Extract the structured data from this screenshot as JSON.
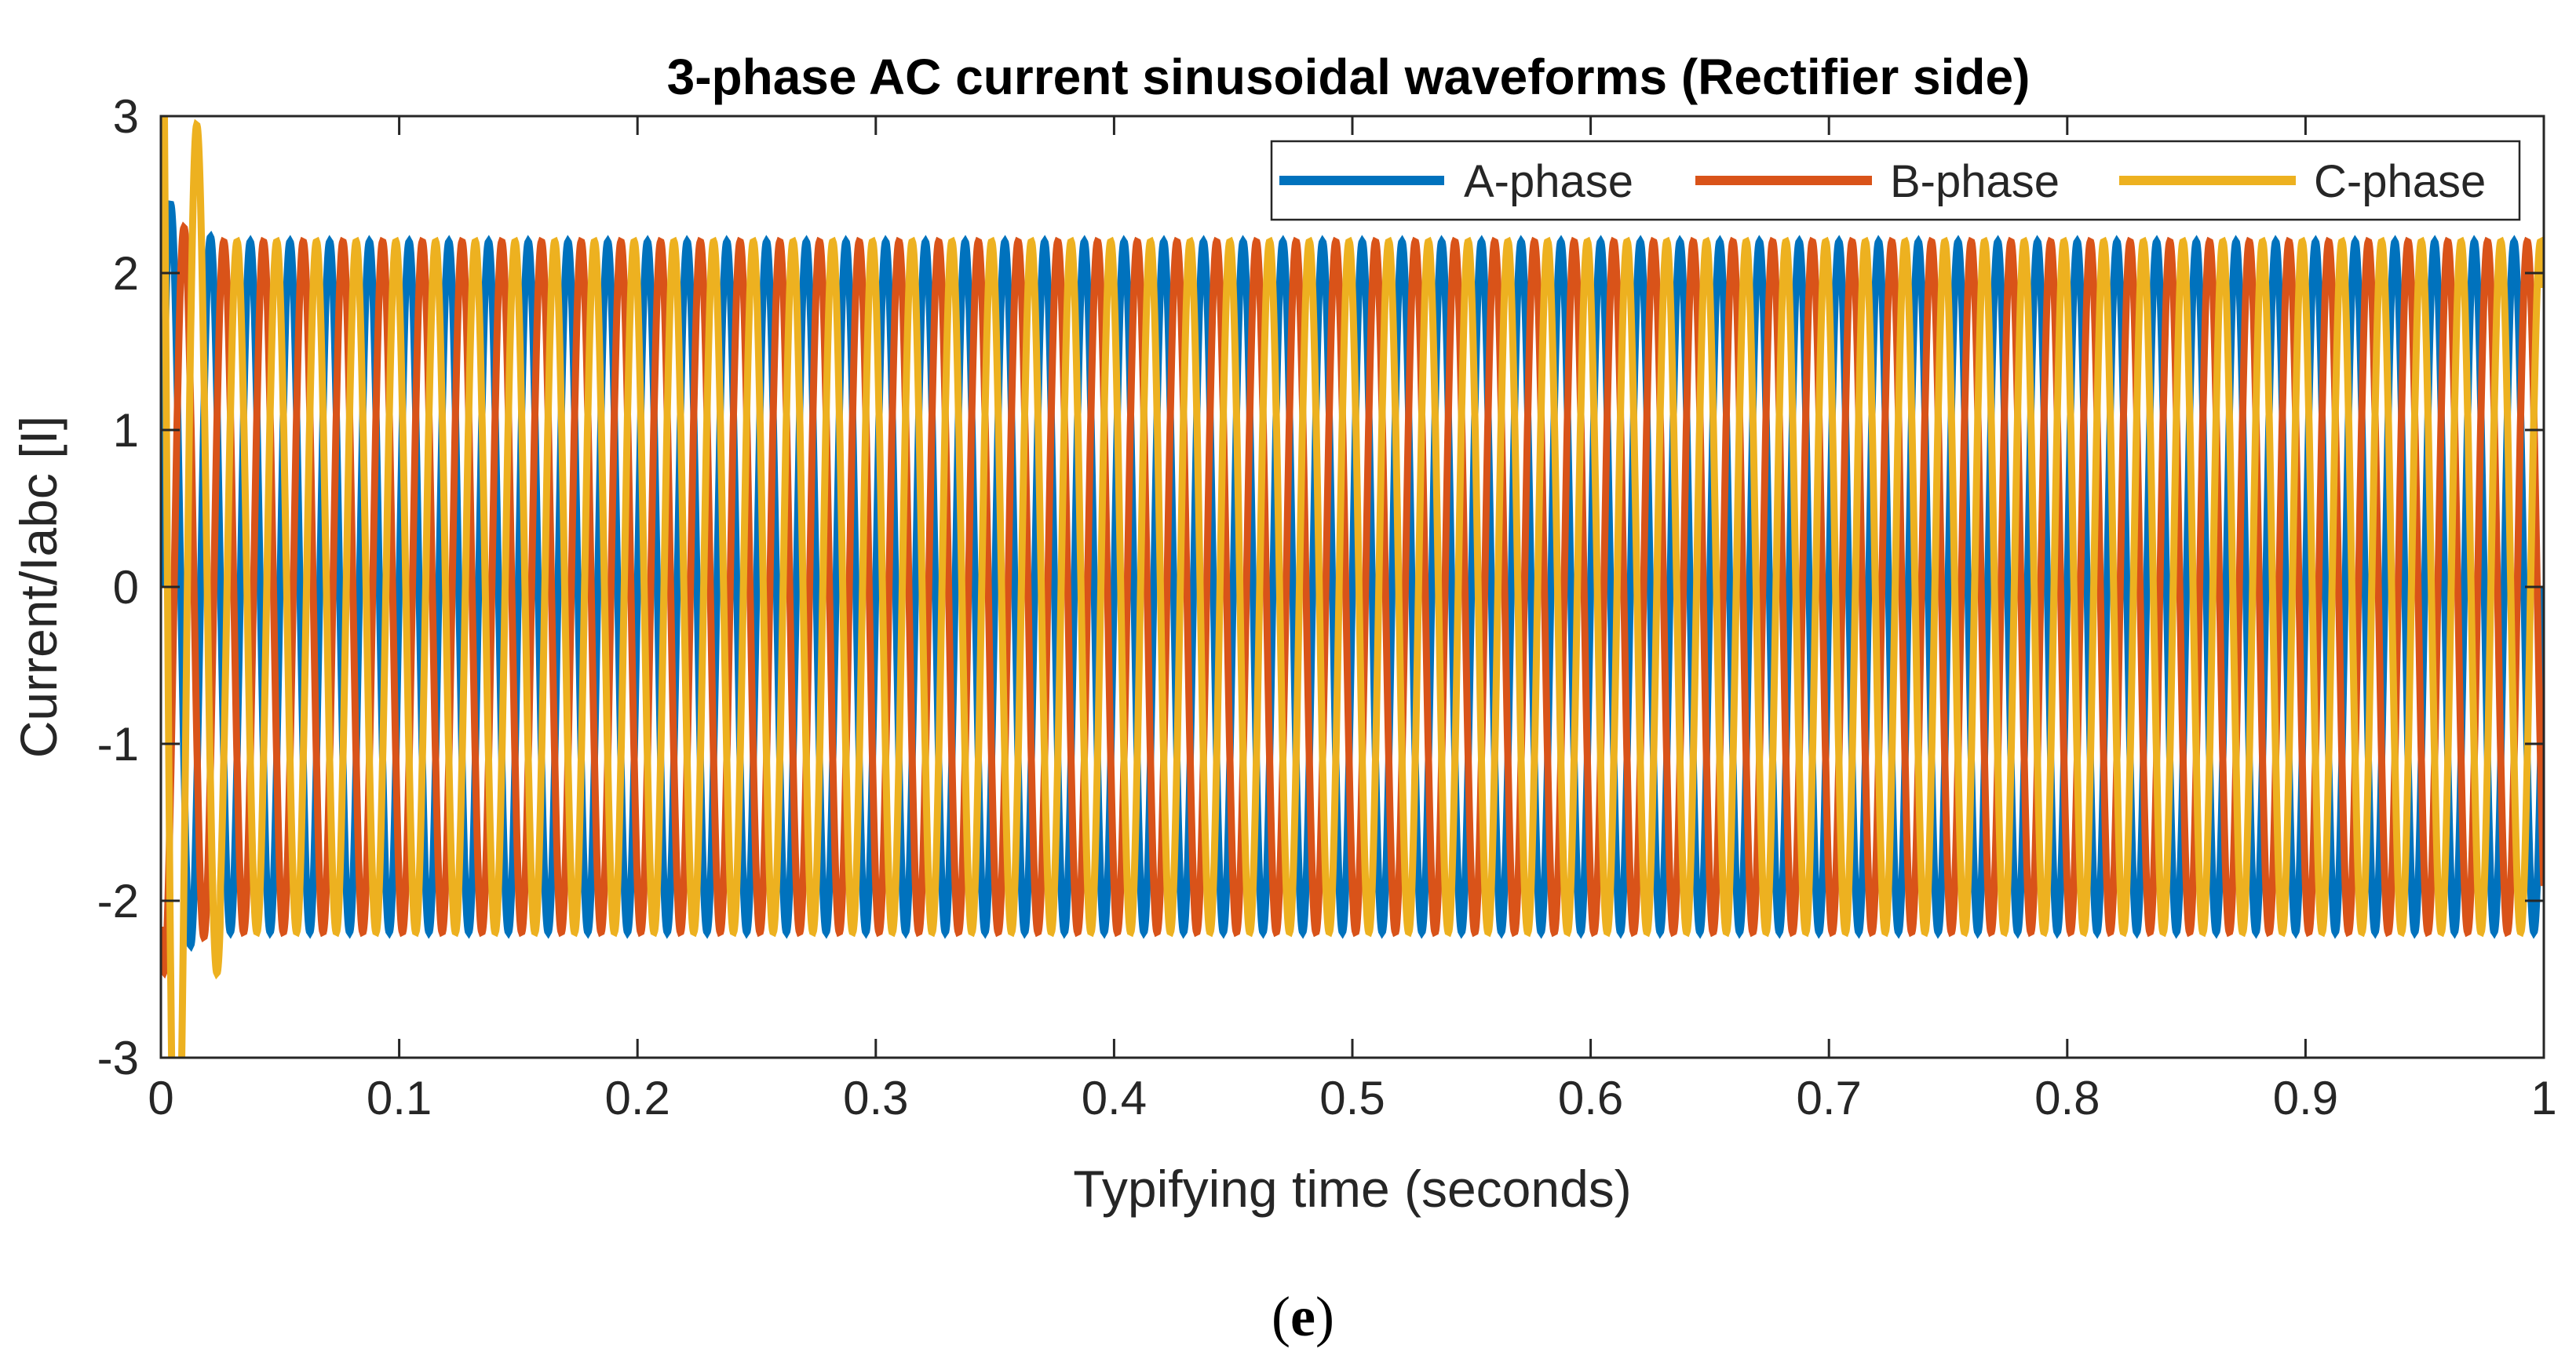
{
  "chart_data": {
    "type": "line",
    "title": "3-phase AC current sinusoidal waveforms (Rectifier side)",
    "xlabel": "Typifying time (seconds)",
    "ylabel": "Current/Iabc [I]",
    "xlim": [
      0,
      1
    ],
    "ylim": [
      -3,
      3
    ],
    "x_ticks": [
      0,
      0.1,
      0.2,
      0.3,
      0.4,
      0.5,
      0.6,
      0.7,
      0.8,
      0.9,
      1
    ],
    "x_tick_labels": [
      "0",
      "0.1",
      "0.2",
      "0.3",
      "0.4",
      "0.5",
      "0.6",
      "0.7",
      "0.8",
      "0.9",
      "1"
    ],
    "y_ticks": [
      -3,
      -2,
      -1,
      0,
      1,
      2,
      3
    ],
    "y_tick_labels": [
      "-3",
      "-2",
      "-1",
      "0",
      "1",
      "2",
      "3"
    ],
    "grid": false,
    "legend_position": "top-right",
    "legend_orientation": "horizontal",
    "signal": {
      "amplitude": 2.2,
      "frequency_hz": 60,
      "duration_s": 1,
      "startup_transient": "overshoot to about +2.6 / -2.75 during the first 0.02 s"
    },
    "series": [
      {
        "name": "A-phase",
        "color": "#0072BD",
        "phase_deg": 0,
        "peak_transient": 2.6
      },
      {
        "name": "B-phase",
        "color": "#D95319",
        "phase_deg": -120,
        "peak_transient": 2.5
      },
      {
        "name": "C-phase",
        "color": "#EDB120",
        "phase_deg": 120,
        "peak_transient": -2.75
      }
    ]
  },
  "caption": {
    "open": "(",
    "letter": "e",
    "close": ")"
  }
}
